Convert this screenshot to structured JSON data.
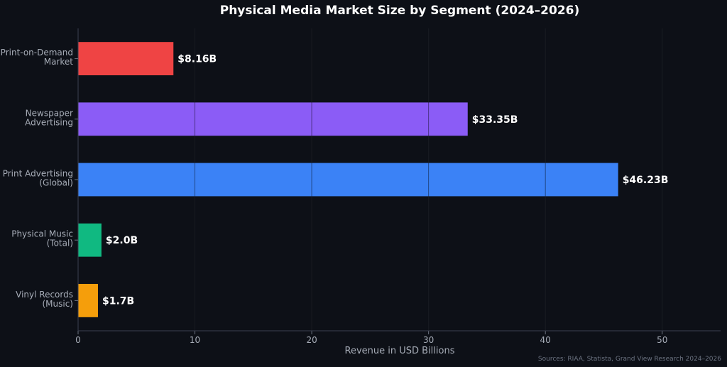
{
  "chart_data": {
    "type": "bar",
    "orientation": "horizontal",
    "title": "Physical Media Market Size by Segment (2024–2026)",
    "xlabel": "Revenue in USD Billions",
    "ylabel": "",
    "xlim": [
      0,
      55
    ],
    "xticks": [
      0,
      10,
      20,
      30,
      40,
      50
    ],
    "grid": true,
    "categories": [
      [
        "Print-on-Demand",
        "Market"
      ],
      [
        "Newspaper",
        "Advertising"
      ],
      [
        "Print Advertising",
        "(Global)"
      ],
      [
        "Physical Music",
        "(Total)"
      ],
      [
        "Vinyl Records",
        "(Music)"
      ]
    ],
    "values": [
      8.16,
      33.35,
      46.23,
      2.0,
      1.7
    ],
    "data_labels": [
      "$8.16B",
      "$33.35B",
      "$46.23B",
      "$2.0B",
      "$1.7B"
    ],
    "colors": [
      "#ef4444",
      "#8b5cf6",
      "#3b82f6",
      "#10b981",
      "#f59e0b"
    ],
    "source_note": "Sources: RIAA, Statista, Grand View Research 2024–2026"
  }
}
